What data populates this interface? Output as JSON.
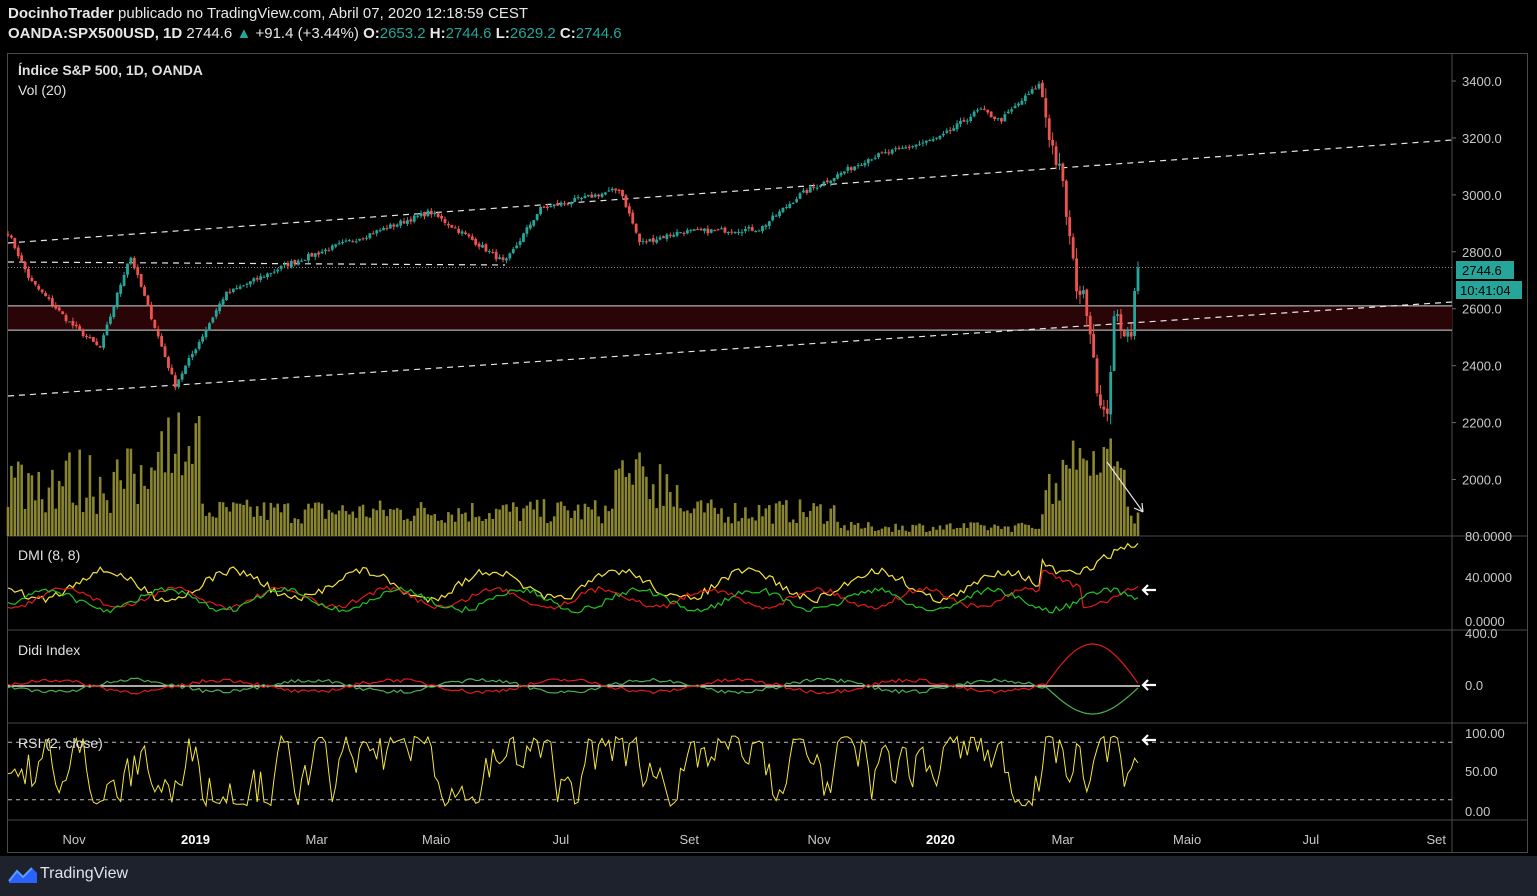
{
  "header": {
    "author": "DocinhoTrader",
    "published_text": "publicado no TradingView.com, Abril 07, 2020 12:18:59 CEST",
    "symbol": "OANDA:SPX500USD, 1D",
    "last": "2744.6",
    "change": "+91.4 (+3.44%)",
    "o_label": "O:",
    "o_value": "2653.2",
    "h_label": "H:",
    "h_value": "2744.6",
    "l_label": "L:",
    "l_value": "2629.2",
    "c_label": "C:",
    "c_value": "2744.6"
  },
  "main_pane": {
    "title": "Índice S&P 500, 1D, OANDA",
    "vol_label": "Vol (20)"
  },
  "dmi_pane": {
    "title": "DMI (8, 8)"
  },
  "didi_pane": {
    "title": "Didi Index"
  },
  "rsi_pane": {
    "title": "RSI (2, close)"
  },
  "price_badge": "2744.6",
  "countdown_badge": "10:41:04",
  "footer": {
    "brand": "TradingView"
  },
  "colors": {
    "up": "#26a69a",
    "down": "#ef5350",
    "zone": "#2a0508",
    "volume": "#8a8530",
    "yellow": "#f5e53a",
    "green": "#22c322",
    "red": "#e11a1a"
  },
  "chart_data": {
    "type": "candlestick",
    "price_axis": {
      "ticks": [
        "3400.0",
        "3200.0",
        "3000.0",
        "2800.0",
        "2600.0",
        "2400.0",
        "2200.0",
        "2000.0"
      ],
      "values": [
        3400,
        3200,
        3000,
        2800,
        2600,
        2400,
        2200,
        2000
      ]
    },
    "dmi_axis": [
      "80.0000",
      "40.0000",
      "0.0000"
    ],
    "didi_axis": [
      "400.0",
      "0.0"
    ],
    "rsi_axis": [
      "100.00",
      "50.00",
      "0.00"
    ],
    "time_axis": [
      "Nov",
      "2019",
      "Mar",
      "Maio",
      "Jul",
      "Set",
      "Nov",
      "2020",
      "Mar",
      "Maio",
      "Jul",
      "Set"
    ],
    "bold_time_labels": [
      "2019",
      "2020"
    ],
    "key_points": [
      {
        "date": "Out 2018",
        "price": 2930
      },
      {
        "date": "Dez 2018",
        "price": 2330
      },
      {
        "date": "Abr 2019",
        "price": 2940
      },
      {
        "date": "Jun 2019",
        "price": 2750
      },
      {
        "date": "Jul 2019",
        "price": 3020
      },
      {
        "date": "Ago 2019",
        "price": 2830
      },
      {
        "date": "Nov 2019",
        "price": 3120
      },
      {
        "date": "Fev 2020",
        "price": 3390
      },
      {
        "date": "Mar 2020",
        "price": 2190
      },
      {
        "date": "Abr 2020",
        "price": 2744.6
      }
    ],
    "support_zone": [
      2525,
      2610
    ],
    "last_price": 2744.6
  }
}
